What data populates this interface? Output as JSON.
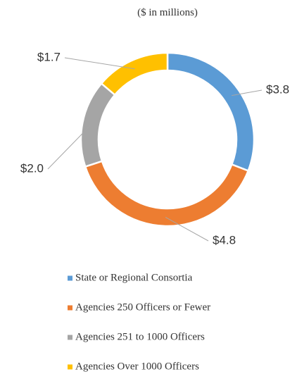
{
  "chart_data": {
    "type": "donut",
    "subtitle": "($ in millions)",
    "categories": [
      "State or Regional Consortia",
      "Agencies  250 Officers or Fewer",
      "Agencies 251 to 1000 Officers",
      "Agencies Over 1000 Officers"
    ],
    "values": [
      3.8,
      4.8,
      2.0,
      1.7
    ],
    "value_labels": [
      "$3.8",
      "$4.8",
      "$2.0",
      "$1.7"
    ],
    "colors": [
      "#5b9bd5",
      "#ed7d31",
      "#a5a5a5",
      "#ffc000"
    ],
    "legend": "bottom"
  }
}
